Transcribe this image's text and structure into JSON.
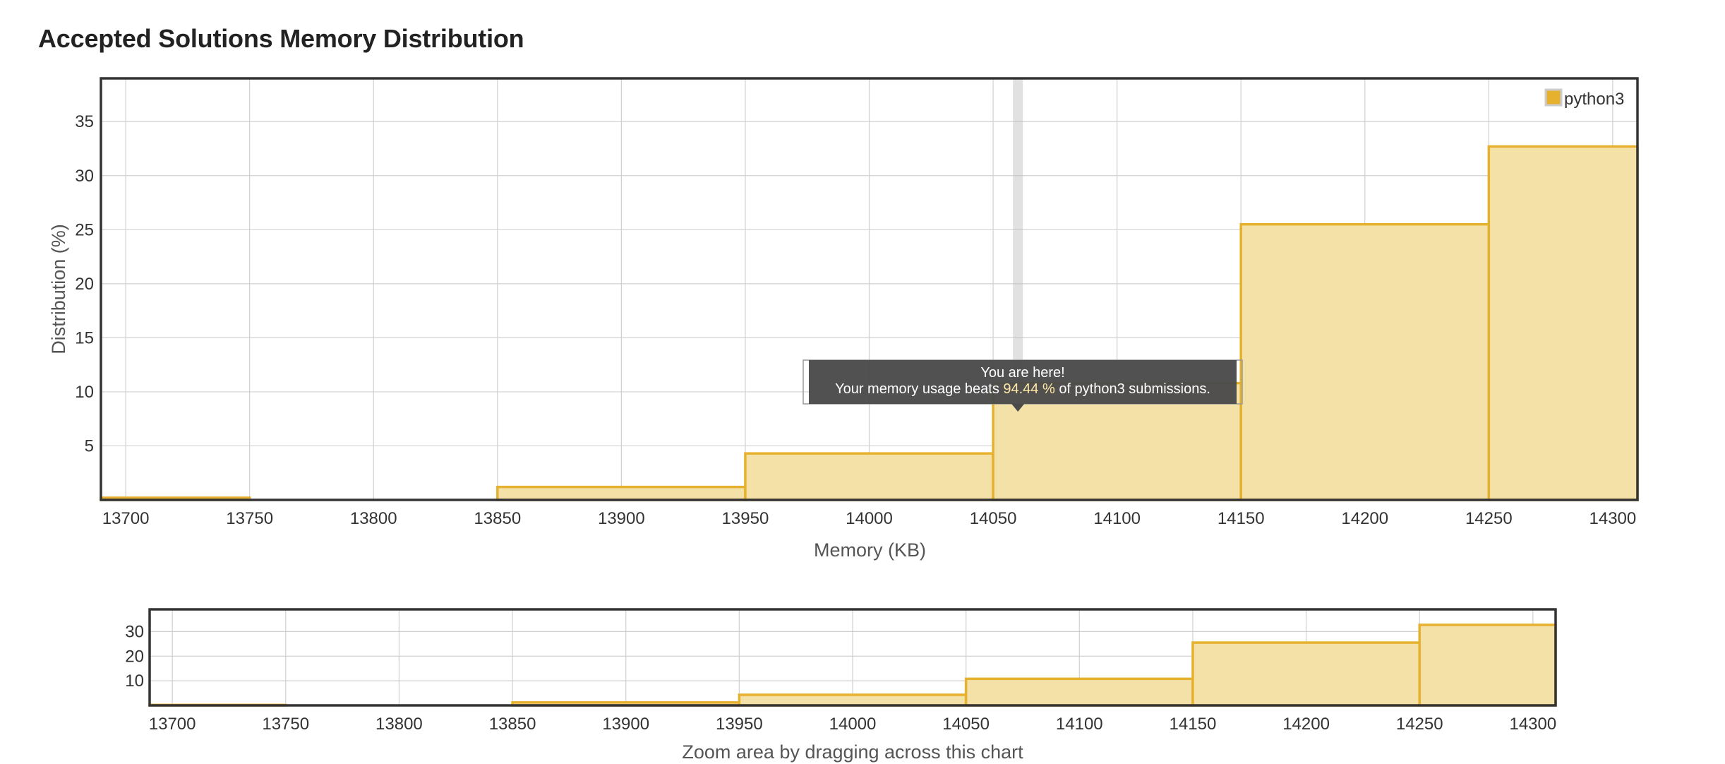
{
  "page": {
    "title": "Accepted Solutions Memory Distribution"
  },
  "chart_data": [
    {
      "type": "bar",
      "role": "main",
      "bins": [
        {
          "x0": 13690,
          "x1": 13750,
          "value": 0.2
        },
        {
          "x0": 13750,
          "x1": 13850,
          "value": 0
        },
        {
          "x0": 13850,
          "x1": 13950,
          "value": 1.2
        },
        {
          "x0": 13950,
          "x1": 14050,
          "value": 4.3
        },
        {
          "x0": 14050,
          "x1": 14150,
          "value": 10.8
        },
        {
          "x0": 14150,
          "x1": 14250,
          "value": 25.5
        },
        {
          "x0": 14250,
          "x1": 14310,
          "value": 32.7
        }
      ],
      "xlim": [
        13690,
        14310
      ],
      "ylim": [
        0,
        39
      ],
      "xticks": [
        13700,
        13750,
        13800,
        13850,
        13900,
        13950,
        14000,
        14050,
        14100,
        14150,
        14200,
        14250,
        14300
      ],
      "yticks": [
        5,
        10,
        15,
        20,
        25,
        30,
        35
      ],
      "xlabel": "Memory (KB)",
      "ylabel": "Distribution (%)",
      "series": [
        {
          "name": "python3",
          "color": "#e6b12e",
          "fill": "#f3e1a8"
        }
      ],
      "legend": "top-right",
      "grid": true,
      "marker": {
        "x": 14060
      },
      "tooltip": {
        "line1": "You are here!",
        "line2_prefix": "Your memory usage beats ",
        "percent": "94.44 %",
        "line2_suffix": " of python3 submissions."
      }
    },
    {
      "type": "bar",
      "role": "navigator",
      "bins": [
        {
          "x0": 13690,
          "x1": 13750,
          "value": 0.2
        },
        {
          "x0": 13750,
          "x1": 13850,
          "value": 0
        },
        {
          "x0": 13850,
          "x1": 13950,
          "value": 1.2
        },
        {
          "x0": 13950,
          "x1": 14050,
          "value": 4.3
        },
        {
          "x0": 14050,
          "x1": 14150,
          "value": 10.8
        },
        {
          "x0": 14150,
          "x1": 14250,
          "value": 25.5
        },
        {
          "x0": 14250,
          "x1": 14310,
          "value": 32.7
        }
      ],
      "xlim": [
        13690,
        14310
      ],
      "ylim": [
        0,
        39
      ],
      "xticks": [
        13700,
        13750,
        13800,
        13850,
        13900,
        13950,
        14000,
        14050,
        14100,
        14150,
        14200,
        14250,
        14300
      ],
      "yticks": [
        10,
        20,
        30
      ],
      "xlabel": "Zoom area by dragging across this chart",
      "grid": true
    }
  ]
}
